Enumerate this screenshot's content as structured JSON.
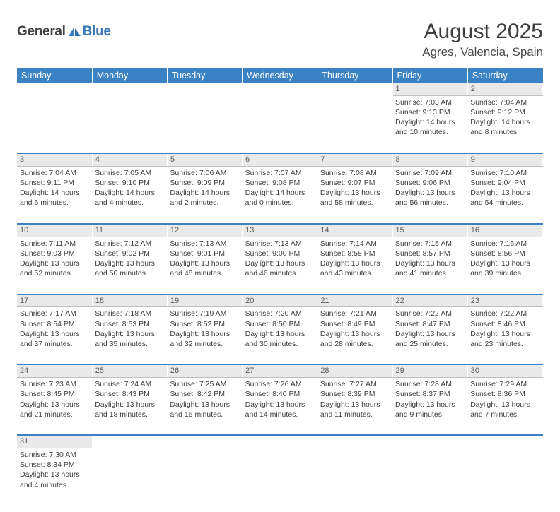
{
  "logo": {
    "text1": "General",
    "text2": "Blue",
    "triangle_color": "#3a82c4"
  },
  "title": "August 2025",
  "location": "Agres, Valencia, Spain",
  "style": {
    "header_bg": "#3a82c4",
    "header_text": "#ffffff",
    "daynum_bg": "#e9e9e9",
    "row_separator": "#3a82c4",
    "body_text": "#3e3e3e",
    "title_fontsize": 30,
    "location_fontsize": 17,
    "weekday_fontsize": 12.5,
    "cell_fontsize": 10.5
  },
  "weekdays": [
    "Sunday",
    "Monday",
    "Tuesday",
    "Wednesday",
    "Thursday",
    "Friday",
    "Saturday"
  ],
  "weeks": [
    [
      null,
      null,
      null,
      null,
      null,
      {
        "day": "1",
        "sunrise": "7:03 AM",
        "sunset": "9:13 PM",
        "daylight": "14 hours and 10 minutes."
      },
      {
        "day": "2",
        "sunrise": "7:04 AM",
        "sunset": "9:12 PM",
        "daylight": "14 hours and 8 minutes."
      }
    ],
    [
      {
        "day": "3",
        "sunrise": "7:04 AM",
        "sunset": "9:11 PM",
        "daylight": "14 hours and 6 minutes."
      },
      {
        "day": "4",
        "sunrise": "7:05 AM",
        "sunset": "9:10 PM",
        "daylight": "14 hours and 4 minutes."
      },
      {
        "day": "5",
        "sunrise": "7:06 AM",
        "sunset": "9:09 PM",
        "daylight": "14 hours and 2 minutes."
      },
      {
        "day": "6",
        "sunrise": "7:07 AM",
        "sunset": "9:08 PM",
        "daylight": "14 hours and 0 minutes."
      },
      {
        "day": "7",
        "sunrise": "7:08 AM",
        "sunset": "9:07 PM",
        "daylight": "13 hours and 58 minutes."
      },
      {
        "day": "8",
        "sunrise": "7:09 AM",
        "sunset": "9:06 PM",
        "daylight": "13 hours and 56 minutes."
      },
      {
        "day": "9",
        "sunrise": "7:10 AM",
        "sunset": "9:04 PM",
        "daylight": "13 hours and 54 minutes."
      }
    ],
    [
      {
        "day": "10",
        "sunrise": "7:11 AM",
        "sunset": "9:03 PM",
        "daylight": "13 hours and 52 minutes."
      },
      {
        "day": "11",
        "sunrise": "7:12 AM",
        "sunset": "9:02 PM",
        "daylight": "13 hours and 50 minutes."
      },
      {
        "day": "12",
        "sunrise": "7:13 AM",
        "sunset": "9:01 PM",
        "daylight": "13 hours and 48 minutes."
      },
      {
        "day": "13",
        "sunrise": "7:13 AM",
        "sunset": "9:00 PM",
        "daylight": "13 hours and 46 minutes."
      },
      {
        "day": "14",
        "sunrise": "7:14 AM",
        "sunset": "8:58 PM",
        "daylight": "13 hours and 43 minutes."
      },
      {
        "day": "15",
        "sunrise": "7:15 AM",
        "sunset": "8:57 PM",
        "daylight": "13 hours and 41 minutes."
      },
      {
        "day": "16",
        "sunrise": "7:16 AM",
        "sunset": "8:56 PM",
        "daylight": "13 hours and 39 minutes."
      }
    ],
    [
      {
        "day": "17",
        "sunrise": "7:17 AM",
        "sunset": "8:54 PM",
        "daylight": "13 hours and 37 minutes."
      },
      {
        "day": "18",
        "sunrise": "7:18 AM",
        "sunset": "8:53 PM",
        "daylight": "13 hours and 35 minutes."
      },
      {
        "day": "19",
        "sunrise": "7:19 AM",
        "sunset": "8:52 PM",
        "daylight": "13 hours and 32 minutes."
      },
      {
        "day": "20",
        "sunrise": "7:20 AM",
        "sunset": "8:50 PM",
        "daylight": "13 hours and 30 minutes."
      },
      {
        "day": "21",
        "sunrise": "7:21 AM",
        "sunset": "8:49 PM",
        "daylight": "13 hours and 28 minutes."
      },
      {
        "day": "22",
        "sunrise": "7:22 AM",
        "sunset": "8:47 PM",
        "daylight": "13 hours and 25 minutes."
      },
      {
        "day": "23",
        "sunrise": "7:22 AM",
        "sunset": "8:46 PM",
        "daylight": "13 hours and 23 minutes."
      }
    ],
    [
      {
        "day": "24",
        "sunrise": "7:23 AM",
        "sunset": "8:45 PM",
        "daylight": "13 hours and 21 minutes."
      },
      {
        "day": "25",
        "sunrise": "7:24 AM",
        "sunset": "8:43 PM",
        "daylight": "13 hours and 18 minutes."
      },
      {
        "day": "26",
        "sunrise": "7:25 AM",
        "sunset": "8:42 PM",
        "daylight": "13 hours and 16 minutes."
      },
      {
        "day": "27",
        "sunrise": "7:26 AM",
        "sunset": "8:40 PM",
        "daylight": "13 hours and 14 minutes."
      },
      {
        "day": "28",
        "sunrise": "7:27 AM",
        "sunset": "8:39 PM",
        "daylight": "13 hours and 11 minutes."
      },
      {
        "day": "29",
        "sunrise": "7:28 AM",
        "sunset": "8:37 PM",
        "daylight": "13 hours and 9 minutes."
      },
      {
        "day": "30",
        "sunrise": "7:29 AM",
        "sunset": "8:36 PM",
        "daylight": "13 hours and 7 minutes."
      }
    ],
    [
      {
        "day": "31",
        "sunrise": "7:30 AM",
        "sunset": "8:34 PM",
        "daylight": "13 hours and 4 minutes."
      },
      null,
      null,
      null,
      null,
      null,
      null
    ]
  ]
}
